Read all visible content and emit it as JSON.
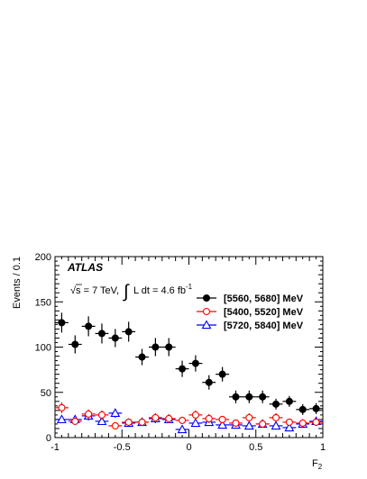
{
  "chart_data": {
    "type": "scatter",
    "experiment_label": "ATLAS",
    "energy_label": "√s = 7 TeV,",
    "lumi_label": "L dt = 4.6 fb",
    "lumi_superscript": "-1",
    "integral_symbol": "∫",
    "xlabel": "F",
    "xlabel_subscript": "2",
    "ylabel": "Events / 0.1",
    "xlim": [
      -1,
      1
    ],
    "ylim": [
      0,
      200
    ],
    "xticks": [
      -1,
      -0.5,
      0,
      0.5,
      1
    ],
    "xtick_labels": [
      "-1",
      "-0.5",
      "0",
      "0.5",
      "1"
    ],
    "yticks": [
      0,
      50,
      100,
      150,
      200
    ],
    "ytick_labels": [
      "0",
      "50",
      "100",
      "150",
      "200"
    ],
    "legend_position": "top-right",
    "bin_width": 0.1,
    "series": [
      {
        "name": "[5560, 5680] MeV",
        "color": "#000000",
        "marker": "filled-circle",
        "x": [
          -0.95,
          -0.85,
          -0.75,
          -0.65,
          -0.55,
          -0.45,
          -0.35,
          -0.25,
          -0.15,
          -0.05,
          0.05,
          0.15,
          0.25,
          0.35,
          0.45,
          0.55,
          0.65,
          0.75,
          0.85,
          0.95
        ],
        "y": [
          127,
          103,
          123,
          115,
          110,
          117,
          89,
          100,
          100,
          76,
          82,
          61,
          70,
          45,
          45,
          45,
          37,
          40,
          31,
          32
        ],
        "yerr": [
          11,
          10,
          11,
          11,
          10,
          11,
          9,
          10,
          10,
          9,
          9,
          8,
          8,
          7,
          7,
          7,
          6,
          6,
          6,
          6
        ]
      },
      {
        "name": "[5400, 5520] MeV",
        "color": "#ff0000",
        "marker": "open-circle",
        "x": [
          -0.95,
          -0.85,
          -0.75,
          -0.65,
          -0.55,
          -0.45,
          -0.35,
          -0.25,
          -0.15,
          -0.05,
          0.05,
          0.15,
          0.25,
          0.35,
          0.45,
          0.55,
          0.65,
          0.75,
          0.85,
          0.95
        ],
        "y": [
          33,
          18,
          26,
          25,
          13,
          17,
          17,
          22,
          21,
          19,
          25,
          21,
          20,
          16,
          22,
          15,
          22,
          17,
          16,
          17
        ],
        "yerr": [
          6,
          4,
          5,
          5,
          4,
          4,
          4,
          5,
          5,
          4,
          5,
          5,
          4,
          4,
          5,
          4,
          5,
          4,
          4,
          4
        ]
      },
      {
        "name": "[5720, 5840] MeV",
        "color": "#0000ff",
        "marker": "open-triangle",
        "x": [
          -0.95,
          -0.85,
          -0.75,
          -0.65,
          -0.55,
          -0.45,
          -0.35,
          -0.25,
          -0.15,
          -0.05,
          0.05,
          0.15,
          0.25,
          0.35,
          0.45,
          0.55,
          0.65,
          0.75,
          0.85,
          0.95
        ],
        "y": [
          20,
          20,
          24,
          18,
          27,
          16,
          17,
          21,
          20,
          9,
          16,
          17,
          14,
          14,
          13,
          15,
          13,
          11,
          15,
          18
        ],
        "yerr": [
          4,
          4,
          5,
          4,
          5,
          4,
          4,
          5,
          4,
          3,
          4,
          4,
          4,
          4,
          4,
          4,
          4,
          3,
          4,
          4
        ]
      }
    ]
  }
}
